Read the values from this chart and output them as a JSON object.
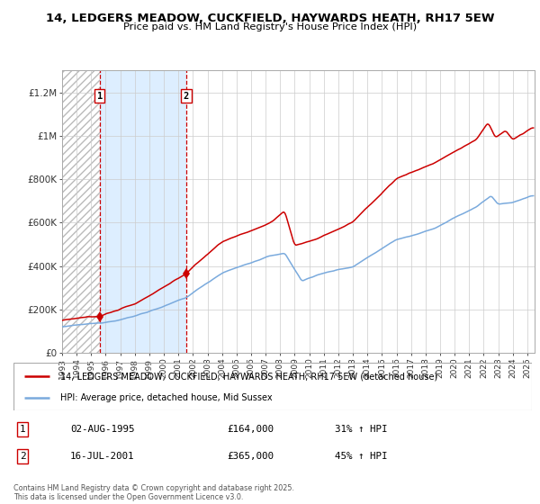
{
  "title": "14, LEDGERS MEADOW, CUCKFIELD, HAYWARDS HEATH, RH17 5EW",
  "subtitle": "Price paid vs. HM Land Registry's House Price Index (HPI)",
  "legend_line1": "14, LEDGERS MEADOW, CUCKFIELD, HAYWARDS HEATH, RH17 5EW (detached house)",
  "legend_line2": "HPI: Average price, detached house, Mid Sussex",
  "transaction1": {
    "date": "02-AUG-1995",
    "price": 164000,
    "hpi_pct": "31% ↑ HPI",
    "label": "1"
  },
  "transaction2": {
    "date": "16-JUL-2001",
    "price": 365000,
    "hpi_pct": "45% ↑ HPI",
    "label": "2"
  },
  "footnote": "Contains HM Land Registry data © Crown copyright and database right 2025.\nThis data is licensed under the Open Government Licence v3.0.",
  "ylim": [
    0,
    1300000
  ],
  "yticks": [
    0,
    200000,
    400000,
    600000,
    800000,
    1000000,
    1200000
  ],
  "ytick_labels": [
    "£0",
    "£200K",
    "£400K",
    "£600K",
    "£800K",
    "£1M",
    "£1.2M"
  ],
  "red_color": "#cc0000",
  "blue_color": "#7aaadd",
  "hatch_color": "#cccccc",
  "bg_highlight_color": "#ddeeff",
  "transaction1_date_num": 1995.583,
  "transaction2_date_num": 2001.538,
  "start_year": 1993,
  "end_year": 2025
}
